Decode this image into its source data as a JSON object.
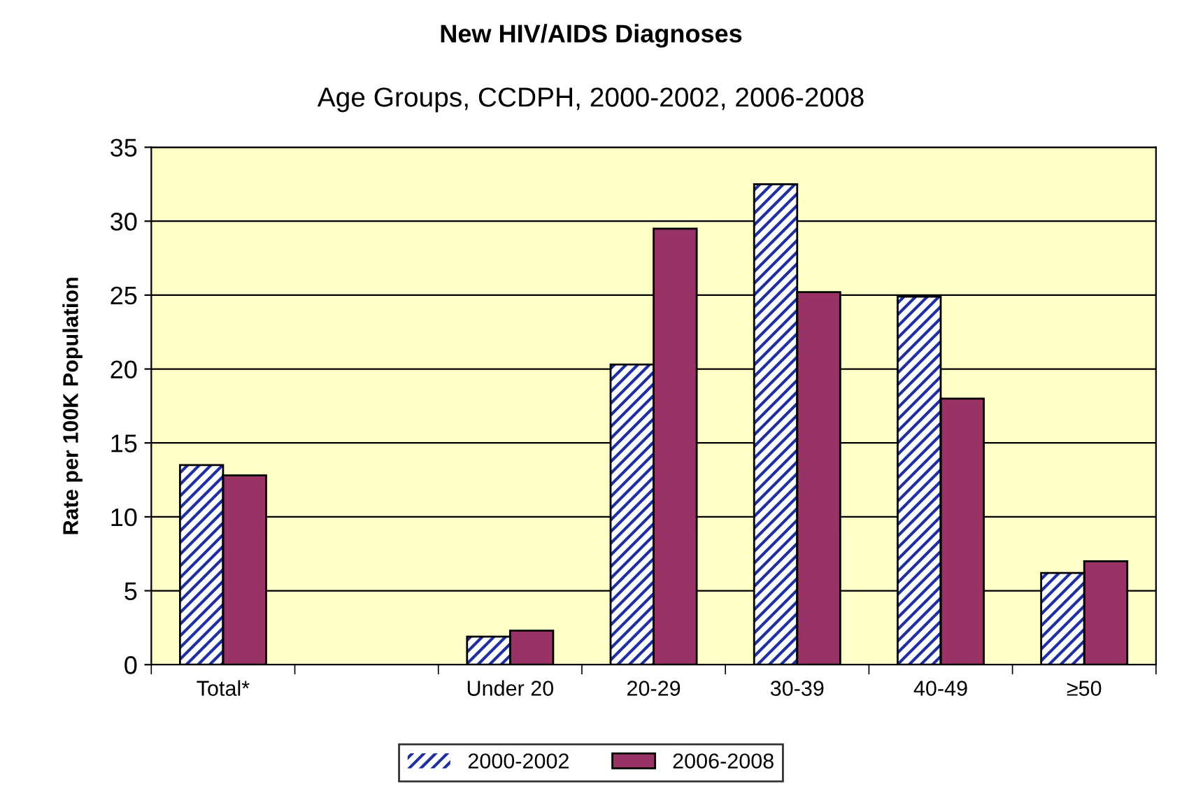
{
  "chart_data": {
    "type": "bar",
    "title": "New HIV/AIDS Diagnoses",
    "subtitle": "Age Groups, CCDPH, 2000-2002, 2006-2008",
    "ylabel": "Rate per 100K Population",
    "categories": [
      "Total*",
      null,
      "Under 20",
      "20-29",
      "30-39",
      "40-49",
      "≥50"
    ],
    "series": [
      {
        "name": "2000-2002",
        "color": "#1f2f9f",
        "values": [
          13.5,
          null,
          1.9,
          20.3,
          32.5,
          24.9,
          6.2
        ]
      },
      {
        "name": "2006-2008",
        "color": "#993366",
        "values": [
          12.8,
          null,
          2.3,
          29.5,
          25.2,
          18.0,
          7.0
        ]
      }
    ],
    "ylim": [
      0,
      35
    ],
    "yticks": [
      0,
      5,
      10,
      15,
      20,
      25,
      30,
      35
    ],
    "grid": "y",
    "legend": "bottom"
  }
}
